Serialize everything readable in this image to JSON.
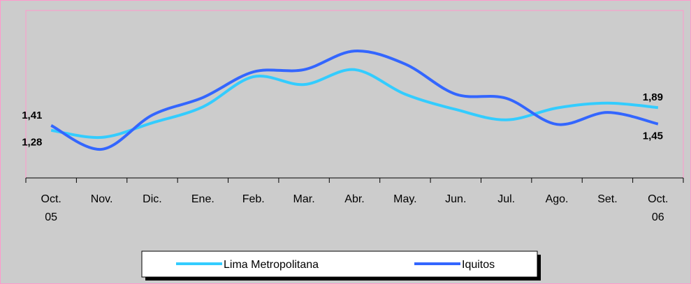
{
  "chart_data": {
    "type": "line",
    "categories": [
      "Oct. 05",
      "Nov.",
      "Dic.",
      "Ene.",
      "Feb.",
      "Mar.",
      "Abr.",
      "May.",
      "Jun.",
      "Jul.",
      "Ago.",
      "Set.",
      "Oct. 06"
    ],
    "series": [
      {
        "name": "Lima Metropolitana",
        "color": "#33ccff",
        "values": [
          1.28,
          1.09,
          1.48,
          1.91,
          2.72,
          2.51,
          2.91,
          2.25,
          1.84,
          1.56,
          1.88,
          2.01,
          1.89
        ],
        "value_labels": [
          "1,28",
          null,
          null,
          null,
          null,
          null,
          null,
          null,
          null,
          null,
          null,
          null,
          "1,89"
        ]
      },
      {
        "name": "Iquitos",
        "color": "#3366ff",
        "values": [
          1.41,
          0.77,
          1.69,
          2.16,
          2.85,
          2.91,
          3.41,
          3.06,
          2.25,
          2.14,
          1.44,
          1.76,
          1.45
        ],
        "value_labels": [
          "1,41",
          null,
          null,
          null,
          null,
          null,
          null,
          null,
          null,
          null,
          null,
          null,
          "1,45"
        ]
      }
    ],
    "ylim": [
      0,
      4.5
    ]
  }
}
